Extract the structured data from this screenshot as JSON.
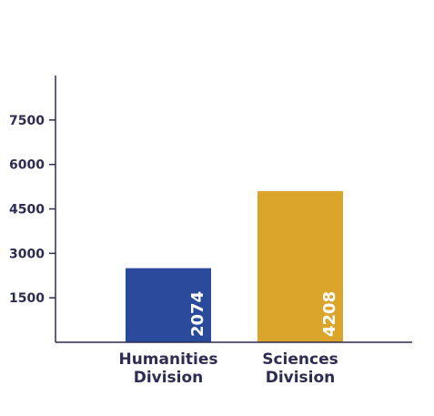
{
  "chart_data": {
    "type": "bar",
    "categories": [
      [
        "Humanities",
        "Division"
      ],
      [
        "Sciences",
        "Division"
      ]
    ],
    "values": [
      2074,
      4208
    ],
    "value_labels": [
      "2074",
      "4208"
    ],
    "bar_heights": [
      2500,
      5100
    ],
    "bar_colors": [
      "#2a4b9c",
      "#dba42a"
    ],
    "title": "",
    "xlabel": "",
    "ylabel": "",
    "ylim": [
      0,
      9000
    ],
    "yticks": [
      1500,
      3000,
      4500,
      6000,
      7500
    ],
    "ytick_labels": [
      "1500",
      "3000",
      "4500",
      "6000",
      "7500"
    ],
    "grid": false,
    "legend": "none"
  },
  "colors": {
    "axis": "#2d2d52",
    "text": "#2d2d52",
    "value_text": "#ffffff"
  }
}
